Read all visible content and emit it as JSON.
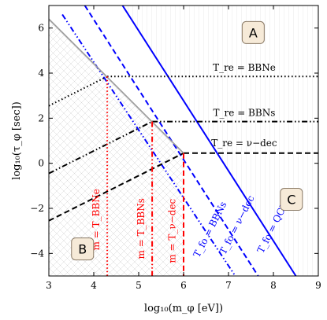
{
  "chart_data": {
    "type": "line",
    "title": "",
    "xlabel": "log₁₀(m_φ [eV])",
    "ylabel": "log₁₀(τ_φ [sec])",
    "xlim": [
      3,
      9
    ],
    "ylim": [
      -5,
      7
    ],
    "xticks": [
      "3",
      "4",
      "5",
      "6",
      "7",
      "8",
      "9"
    ],
    "yticks": [
      "−4",
      "−2",
      "0",
      "2",
      "4",
      "6"
    ],
    "grid": false,
    "series": [
      {
        "name": "T_fo = QCD",
        "style": "solid",
        "color": "#0000ff",
        "x": [
          4.64,
          8.5
        ],
        "y": [
          7.0,
          -5.0
        ]
      },
      {
        "name": "T_fo = ν−dec",
        "style": "dashed",
        "color": "#0000ff",
        "x": [
          3.8,
          7.66
        ],
        "y": [
          7.0,
          -5.0
        ]
      },
      {
        "name": "T_fo = BBNs",
        "style": "dashdotdot",
        "color": "#0000ff",
        "x": [
          3.3,
          7.15
        ],
        "y": [
          6.6,
          -5.0
        ]
      },
      {
        "name": "T_re = BBNe",
        "style": "dotted",
        "color": "#000000",
        "x": [
          4.3,
          9.0
        ],
        "y": [
          3.85,
          3.85
        ]
      },
      {
        "name": "T_re = BBNs",
        "style": "dashdotdot",
        "color": "#000000",
        "x": [
          5.3,
          9.0
        ],
        "y": [
          1.85,
          1.85
        ]
      },
      {
        "name": "T_re = ν−dec",
        "style": "dashed",
        "color": "#000000",
        "x": [
          6.0,
          9.0
        ],
        "y": [
          0.45,
          0.45
        ]
      },
      {
        "name": "",
        "style": "dotted",
        "color": "#000000",
        "x": [
          3.0,
          4.3
        ],
        "y": [
          2.55,
          3.85
        ]
      },
      {
        "name": "",
        "style": "dashdotdot",
        "color": "#000000",
        "x": [
          3.0,
          5.3
        ],
        "y": [
          -0.45,
          1.85
        ]
      },
      {
        "name": "",
        "style": "dashed",
        "color": "#000000",
        "x": [
          3.0,
          6.0
        ],
        "y": [
          -2.55,
          0.45
        ]
      },
      {
        "name": "",
        "style": "solid",
        "color": "#999999",
        "x": [
          3.0,
          6.0
        ],
        "y": [
          6.4,
          0.45
        ]
      },
      {
        "name": "m = T_BBNe",
        "style": "dotted",
        "color": "#ff0000",
        "x": [
          4.3,
          4.3
        ],
        "y": [
          3.85,
          -5.0
        ]
      },
      {
        "name": "m = T_BBNs",
        "style": "dashdotdot",
        "color": "#ff0000",
        "x": [
          5.3,
          5.3
        ],
        "y": [
          1.85,
          -5.0
        ]
      },
      {
        "name": "m = T_ν−dec",
        "style": "dashed",
        "color": "#ff0000",
        "x": [
          6.0,
          6.0
        ],
        "y": [
          0.45,
          -5.0
        ]
      }
    ],
    "annotations": [
      {
        "id": "tre_bbne",
        "text": "T_re = BBNe",
        "x": 7.35,
        "y": 4.1
      },
      {
        "id": "tre_bbns",
        "text": "T_re = BBNs",
        "x": 7.35,
        "y": 2.1
      },
      {
        "id": "tre_nudec",
        "text": "T_re = ν−dec",
        "x": 7.35,
        "y": 0.75
      },
      {
        "id": "tfo_qcd",
        "text": "T_fo = QCD",
        "x": 8.05,
        "y": -2.9,
        "rotate": -63,
        "color": "#0000ff"
      },
      {
        "id": "tfo_nudec",
        "text": "T_fo = ν−dec",
        "x": 7.25,
        "y": -2.8,
        "rotate": -63,
        "color": "#0000ff"
      },
      {
        "id": "tfo_bbns",
        "text": "T_fo = BBNs",
        "x": 6.65,
        "y": -3.0,
        "rotate": -63,
        "color": "#0000ff"
      },
      {
        "id": "m_bbne",
        "text": "m = T_BBNe",
        "x": 4.12,
        "y": -2.5,
        "rotate": -90,
        "color": "#ff0000"
      },
      {
        "id": "m_bbns",
        "text": "m = T_BBNs",
        "x": 5.12,
        "y": -2.9,
        "rotate": -90,
        "color": "#ff0000"
      },
      {
        "id": "m_nudec",
        "text": "m = T_ν−dec",
        "x": 5.82,
        "y": -3.0,
        "rotate": -90,
        "color": "#ff0000"
      }
    ],
    "regions": [
      {
        "label": "A",
        "x": 7.55,
        "y": 5.8
      },
      {
        "label": "B",
        "x": 3.75,
        "y": -3.8
      },
      {
        "label": "C",
        "x": 8.4,
        "y": -1.6
      }
    ]
  }
}
